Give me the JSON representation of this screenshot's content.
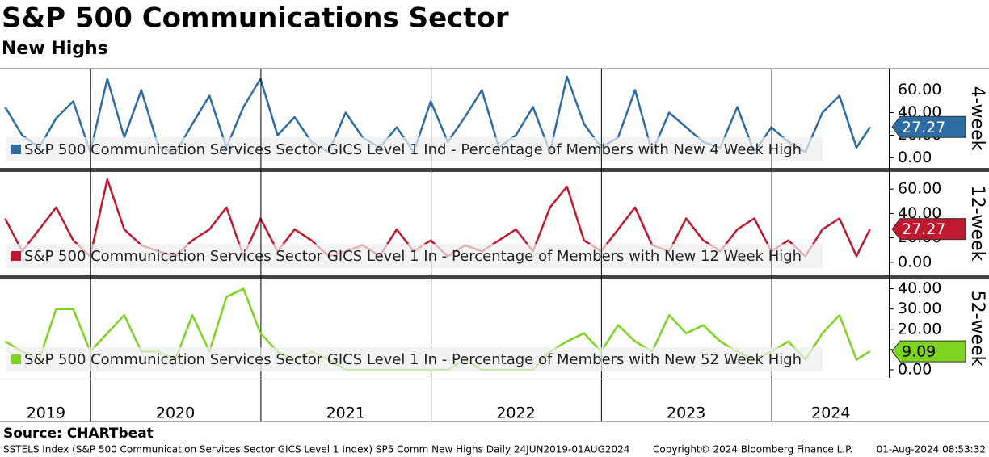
{
  "header": {
    "title": "S&P 500 Communications Sector",
    "subtitle": "New Highs"
  },
  "chart_data": [
    {
      "type": "line",
      "axis_title": "4-week",
      "x": [
        2019.5,
        2019.6,
        2019.7,
        2019.8,
        2019.9,
        2020.0,
        2020.1,
        2020.2,
        2020.3,
        2020.4,
        2020.5,
        2020.6,
        2020.7,
        2020.8,
        2020.9,
        2021.0,
        2021.1,
        2021.2,
        2021.3,
        2021.4,
        2021.5,
        2021.6,
        2021.7,
        2021.8,
        2021.9,
        2022.0,
        2022.1,
        2022.2,
        2022.3,
        2022.4,
        2022.5,
        2022.6,
        2022.7,
        2022.8,
        2022.9,
        2023.0,
        2023.1,
        2023.2,
        2023.3,
        2023.4,
        2023.5,
        2023.6,
        2023.7,
        2023.8,
        2023.9,
        2024.0,
        2024.1,
        2024.2,
        2024.3,
        2024.4,
        2024.5,
        2024.58
      ],
      "series": [
        {
          "name": "S&P 500 Communication Services Sector GICS Level 1 Ind - Percentage of Members with New 4 Week High",
          "color": "#2e6da4",
          "values": [
            45,
            20,
            9,
            35,
            50,
            5,
            70,
            18,
            60,
            10,
            4,
            30,
            55,
            9,
            45,
            70,
            20,
            36,
            14,
            5,
            40,
            18,
            9,
            27,
            5,
            50,
            14,
            36,
            60,
            9,
            20,
            45,
            5,
            72,
            30,
            9,
            18,
            60,
            5,
            40,
            27,
            14,
            9,
            45,
            5,
            27,
            14,
            5,
            40,
            55,
            9,
            27.27
          ]
        }
      ],
      "xlim": [
        2019.47,
        2024.69
      ],
      "ylim": [
        -9,
        79
      ],
      "yticks": [
        {
          "value": 0,
          "label": "0.00"
        },
        {
          "value": 20,
          "label": "20.00"
        },
        {
          "value": 40,
          "label": "40.00"
        },
        {
          "value": 60,
          "label": "60.00"
        }
      ]
    },
    {
      "type": "line",
      "axis_title": "12-week",
      "x": [
        2019.5,
        2019.6,
        2019.7,
        2019.8,
        2019.9,
        2020.0,
        2020.1,
        2020.2,
        2020.3,
        2020.4,
        2020.5,
        2020.6,
        2020.7,
        2020.8,
        2020.9,
        2021.0,
        2021.1,
        2021.2,
        2021.3,
        2021.4,
        2021.5,
        2021.6,
        2021.7,
        2021.8,
        2021.9,
        2022.0,
        2022.1,
        2022.2,
        2022.3,
        2022.4,
        2022.5,
        2022.6,
        2022.7,
        2022.8,
        2022.9,
        2023.0,
        2023.1,
        2023.2,
        2023.3,
        2023.4,
        2023.5,
        2023.6,
        2023.7,
        2023.8,
        2023.9,
        2024.0,
        2024.1,
        2024.2,
        2024.3,
        2024.4,
        2024.5,
        2024.58
      ],
      "series": [
        {
          "name": "S&P 500 Communication Services Sector GICS Level 1 In - Percentage of Members with New 12 Week High",
          "color": "#c0182e",
          "values": [
            36,
            9,
            27,
            45,
            18,
            5,
            68,
            27,
            14,
            9,
            5,
            18,
            27,
            45,
            5,
            36,
            9,
            27,
            18,
            5,
            9,
            14,
            5,
            27,
            9,
            18,
            5,
            14,
            9,
            18,
            27,
            9,
            45,
            62,
            18,
            9,
            27,
            45,
            14,
            9,
            36,
            18,
            9,
            27,
            36,
            9,
            18,
            5,
            27,
            36,
            5,
            27.27
          ]
        }
      ],
      "xlim": [
        2019.47,
        2024.69
      ],
      "ylim": [
        -10,
        74
      ],
      "yticks": [
        {
          "value": 0,
          "label": "0.00"
        },
        {
          "value": 20,
          "label": "20.00"
        },
        {
          "value": 40,
          "label": "40.00"
        },
        {
          "value": 60,
          "label": "60.00"
        }
      ]
    },
    {
      "type": "line",
      "axis_title": "52-week",
      "x": [
        2019.5,
        2019.6,
        2019.7,
        2019.8,
        2019.9,
        2020.0,
        2020.1,
        2020.2,
        2020.3,
        2020.4,
        2020.5,
        2020.6,
        2020.7,
        2020.8,
        2020.9,
        2021.0,
        2021.1,
        2021.2,
        2021.3,
        2021.4,
        2021.5,
        2021.6,
        2021.7,
        2021.8,
        2021.9,
        2022.0,
        2022.1,
        2022.2,
        2022.3,
        2022.4,
        2022.5,
        2022.6,
        2022.7,
        2022.8,
        2022.9,
        2023.0,
        2023.1,
        2023.2,
        2023.3,
        2023.4,
        2023.5,
        2023.6,
        2023.7,
        2023.8,
        2023.9,
        2024.0,
        2024.1,
        2024.2,
        2024.3,
        2024.4,
        2024.5,
        2024.58
      ],
      "series": [
        {
          "name": "S&P 500 Communication Services Sector GICS Level 1 In - Percentage of Members with New 52 Week High",
          "color": "#7ed321",
          "values": [
            14,
            9,
            5,
            30,
            30,
            9,
            18,
            27,
            9,
            9,
            5,
            27,
            9,
            36,
            40,
            18,
            9,
            5,
            9,
            5,
            0,
            0,
            0,
            0,
            0,
            0,
            0,
            5,
            0,
            0,
            0,
            0,
            9,
            14,
            18,
            9,
            22,
            14,
            9,
            27,
            18,
            22,
            14,
            9,
            5,
            9,
            14,
            5,
            18,
            27,
            5,
            9.09
          ]
        }
      ],
      "xlim": [
        2019.47,
        2024.69
      ],
      "ylim": [
        -4,
        45
      ],
      "yticks": [
        {
          "value": 0,
          "label": "0.00"
        },
        {
          "value": 10,
          "label": "10.00"
        },
        {
          "value": 20,
          "label": "20.00"
        },
        {
          "value": 30,
          "label": "30.00"
        },
        {
          "value": 40,
          "label": "40.00"
        }
      ],
      "xticks": [
        {
          "value": 2019.74,
          "label": "2019"
        },
        {
          "value": 2020.5,
          "label": "2020"
        },
        {
          "value": 2021.5,
          "label": "2021"
        },
        {
          "value": 2022.5,
          "label": "2022"
        },
        {
          "value": 2023.5,
          "label": "2023"
        },
        {
          "value": 2024.35,
          "label": "2024"
        }
      ]
    }
  ],
  "footer": {
    "source": "Source: CHARTbeat",
    "description": "SSTELS Index (S&P 500 Communication Services Sector GICS Level 1 Index) SP5 Comm New Highs  Daily 24JUN2019-01AUG2024",
    "copyright": "Copyright© 2024 Bloomberg Finance L.P.",
    "timestamp": "01-Aug-2024 08:53:32"
  }
}
